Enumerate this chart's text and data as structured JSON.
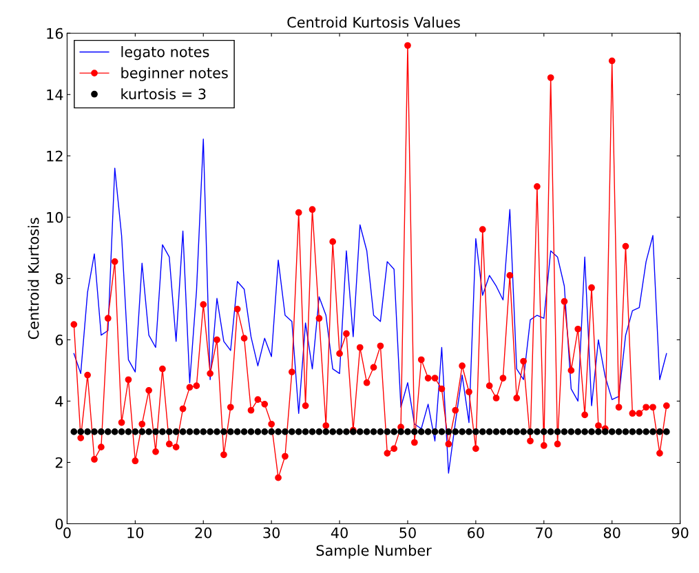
{
  "chart_data": {
    "type": "line",
    "title": "Centroid Kurtosis Values",
    "xlabel": "Sample Number",
    "ylabel": "Centroid Kurtosis",
    "x": [
      1,
      2,
      3,
      4,
      5,
      6,
      7,
      8,
      9,
      10,
      11,
      12,
      13,
      14,
      15,
      16,
      17,
      18,
      19,
      20,
      21,
      22,
      23,
      24,
      25,
      26,
      27,
      28,
      29,
      30,
      31,
      32,
      33,
      34,
      35,
      36,
      37,
      38,
      39,
      40,
      41,
      42,
      43,
      44,
      45,
      46,
      47,
      48,
      49,
      50,
      51,
      52,
      53,
      54,
      55,
      56,
      57,
      58,
      59,
      60,
      61,
      62,
      63,
      64,
      65,
      66,
      67,
      68,
      69,
      70,
      71,
      72,
      73,
      74,
      75,
      76,
      77,
      78,
      79,
      80,
      81,
      82,
      83,
      84,
      85,
      86,
      87,
      88
    ],
    "series": [
      {
        "name": "legato notes",
        "marker": "none",
        "color": "#0000ff",
        "values": [
          5.55,
          4.9,
          7.55,
          8.8,
          6.15,
          6.3,
          11.6,
          9.4,
          5.35,
          4.95,
          8.5,
          6.15,
          5.75,
          9.1,
          8.7,
          5.95,
          9.55,
          4.6,
          7.6,
          12.55,
          4.7,
          7.35,
          5.95,
          5.65,
          7.9,
          7.65,
          6.1,
          5.15,
          6.05,
          5.45,
          8.6,
          6.8,
          6.6,
          3.6,
          6.55,
          5.05,
          7.4,
          6.8,
          5.05,
          4.9,
          8.9,
          6.1,
          9.75,
          8.9,
          6.8,
          6.6,
          8.55,
          8.3,
          3.8,
          4.6,
          3.25,
          3.1,
          3.9,
          2.7,
          5.75,
          1.65,
          3.3,
          4.85,
          3.3,
          9.3,
          7.45,
          8.1,
          7.75,
          7.3,
          10.25,
          5.05,
          4.7,
          6.65,
          6.8,
          6.7,
          8.9,
          8.7,
          7.75,
          4.4,
          4.0,
          8.7,
          3.85,
          6.0,
          4.8,
          4.05,
          4.15,
          6.15,
          6.95,
          7.05,
          8.55,
          9.4,
          4.7,
          5.55
        ]
      },
      {
        "name": "beginner notes",
        "marker": "circle",
        "color": "#ff0000",
        "values": [
          6.5,
          2.8,
          4.85,
          2.1,
          2.5,
          6.7,
          8.55,
          3.3,
          4.7,
          2.05,
          3.25,
          4.35,
          2.35,
          5.05,
          2.6,
          2.5,
          3.75,
          4.45,
          4.5,
          7.15,
          4.9,
          6.0,
          2.25,
          3.8,
          7.0,
          6.05,
          3.7,
          4.05,
          3.9,
          3.25,
          1.5,
          2.2,
          4.95,
          10.15,
          3.85,
          10.25,
          6.7,
          3.2,
          9.2,
          5.55,
          6.2,
          3.05,
          5.75,
          4.6,
          5.1,
          5.8,
          2.3,
          2.45,
          3.15,
          15.6,
          2.65,
          5.35,
          4.75,
          4.75,
          4.4,
          2.6,
          3.7,
          5.15,
          4.3,
          2.45,
          9.6,
          4.5,
          4.1,
          4.75,
          8.1,
          4.1,
          5.3,
          2.7,
          11.0,
          2.55,
          14.55,
          2.6,
          7.25,
          5.0,
          6.35,
          3.55,
          7.7,
          3.2,
          3.1,
          15.1,
          3.8,
          9.05,
          3.6,
          3.6,
          3.8,
          3.8,
          2.3,
          3.85
        ]
      },
      {
        "name": "kurtosis = 3",
        "type": "scatter",
        "marker": "circle",
        "color": "#000000",
        "values": [
          3,
          3,
          3,
          3,
          3,
          3,
          3,
          3,
          3,
          3,
          3,
          3,
          3,
          3,
          3,
          3,
          3,
          3,
          3,
          3,
          3,
          3,
          3,
          3,
          3,
          3,
          3,
          3,
          3,
          3,
          3,
          3,
          3,
          3,
          3,
          3,
          3,
          3,
          3,
          3,
          3,
          3,
          3,
          3,
          3,
          3,
          3,
          3,
          3,
          3,
          3,
          3,
          3,
          3,
          3,
          3,
          3,
          3,
          3,
          3,
          3,
          3,
          3,
          3,
          3,
          3,
          3,
          3,
          3,
          3,
          3,
          3,
          3,
          3,
          3,
          3,
          3,
          3,
          3,
          3,
          3,
          3,
          3,
          3,
          3,
          3,
          3,
          3
        ]
      }
    ],
    "xlim": [
      0,
      90
    ],
    "xticks": [
      0,
      10,
      20,
      30,
      40,
      50,
      60,
      70,
      80,
      90
    ],
    "ylim": [
      0,
      16
    ],
    "yticks": [
      0,
      2,
      4,
      6,
      8,
      10,
      12,
      14,
      16
    ],
    "grid": false,
    "legend": "top left"
  }
}
